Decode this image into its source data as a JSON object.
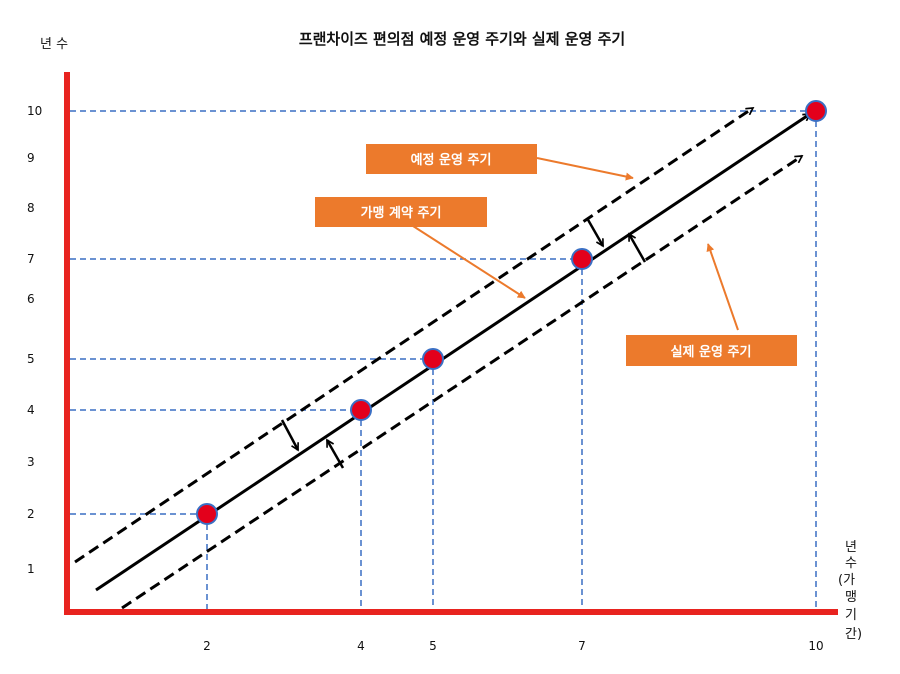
{
  "title": "프랜차이즈 편의점 예정 운영 주기와 실제 운영 주기",
  "y_axis_label": "년 수",
  "x_axis_label_lines": [
    "년",
    "수",
    "(가",
    "맹",
    "기",
    "간)"
  ],
  "callouts": {
    "planned": "예정 운영 주기",
    "contract": "가맹 계약 주기",
    "actual": "실제 운영 주기"
  },
  "colors": {
    "axis": "#e8231f",
    "guide": "#3a6fc4",
    "point_fill": "#e3001b",
    "point_stroke": "#3a6fc4",
    "callout": "#ec7a2c",
    "line": "#000000"
  },
  "chart_data": {
    "type": "diagram",
    "x_ticks": [
      2,
      4,
      5,
      7,
      10
    ],
    "y_ticks": [
      1,
      2,
      3,
      4,
      5,
      6,
      7,
      8,
      9,
      10
    ],
    "points": [
      {
        "x": 2,
        "y": 2
      },
      {
        "x": 4,
        "y": 4
      },
      {
        "x": 5,
        "y": 5
      },
      {
        "x": 7,
        "y": 7
      },
      {
        "x": 10,
        "y": 10
      }
    ]
  }
}
